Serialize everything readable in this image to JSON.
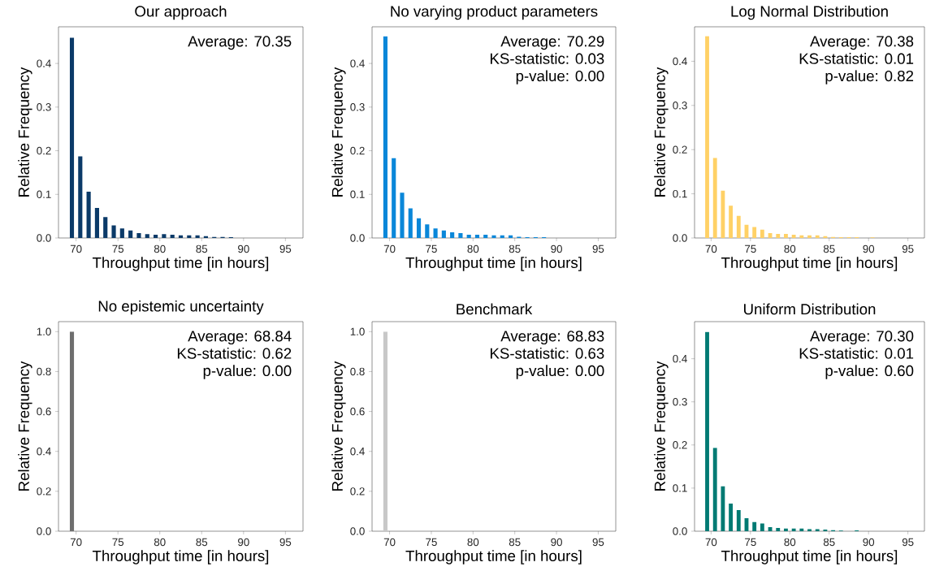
{
  "chart_data": [
    {
      "type": "bar",
      "title": "Our approach",
      "xlabel": "Throughput time [in hours]",
      "ylabel": "Relative Frequency",
      "color": "#0b3a68",
      "x": [
        69.5,
        70.5,
        71.5,
        72.5,
        73.5,
        74.5,
        75.5,
        76.5,
        77.5,
        78.5,
        79.5,
        80.5,
        81.5,
        82.5,
        83.5,
        84.5,
        85.5,
        86.5,
        87.5,
        88.5
      ],
      "values": [
        0.459,
        0.187,
        0.106,
        0.069,
        0.048,
        0.029,
        0.022,
        0.017,
        0.011,
        0.009,
        0.0075,
        0.009,
        0.0075,
        0.006,
        0.006,
        0.006,
        0.004,
        0.0025,
        0.0025,
        0.002
      ],
      "xlim": [
        67.9,
        97.1
      ],
      "xticks": [
        70,
        75,
        80,
        85,
        90,
        95
      ],
      "ylim": [
        0,
        0.484
      ],
      "yticks": [
        {
          "value": 0,
          "label": "0.0"
        },
        {
          "value": 0.1,
          "label": "0.1"
        },
        {
          "value": 0.2,
          "label": "0.2"
        },
        {
          "value": 0.3,
          "label": "0.3"
        },
        {
          "value": 0.4,
          "label": "0.4"
        }
      ],
      "annotations": [
        "Average: 70.35"
      ]
    },
    {
      "type": "bar",
      "title": "No varying product parameters",
      "xlabel": "Throughput time [in hours]",
      "ylabel": "Relative Frequency",
      "color": "#0a87d9",
      "x": [
        69.5,
        70.5,
        71.5,
        72.5,
        73.5,
        74.5,
        75.5,
        76.5,
        77.5,
        78.5,
        79.5,
        80.5,
        81.5,
        82.5,
        83.5,
        84.5,
        85.5,
        86.5,
        87.5,
        88.5
      ],
      "values": [
        0.462,
        0.183,
        0.104,
        0.068,
        0.045,
        0.031,
        0.022,
        0.017,
        0.013,
        0.011,
        0.0075,
        0.0075,
        0.0075,
        0.006,
        0.006,
        0.006,
        0.003,
        0.002,
        0.002,
        0.002
      ],
      "xlim": [
        67.9,
        97.1
      ],
      "xticks": [
        70,
        75,
        80,
        85,
        90,
        95
      ],
      "ylim": [
        0,
        0.484
      ],
      "yticks": [
        {
          "value": 0,
          "label": "0.0"
        },
        {
          "value": 0.1,
          "label": "0.1"
        },
        {
          "value": 0.2,
          "label": "0.2"
        },
        {
          "value": 0.3,
          "label": "0.3"
        },
        {
          "value": 0.4,
          "label": "0.4"
        }
      ],
      "annotations": [
        "Average: 70.29",
        "KS-statistic: 0.03",
        "p-value: 0.00"
      ]
    },
    {
      "type": "bar",
      "title": "Log Normal Distribution",
      "xlabel": "Throughput time [in hours]",
      "ylabel": "Relative Frequency",
      "color": "#ffd166",
      "x": [
        69.5,
        70.5,
        71.5,
        72.5,
        73.5,
        74.5,
        75.5,
        76.5,
        77.5,
        78.5,
        79.5,
        80.5,
        81.5,
        82.5,
        83.5,
        84.5,
        85.5,
        86.5,
        87.5,
        88.5,
        90.5
      ],
      "values": [
        0.457,
        0.181,
        0.107,
        0.073,
        0.05,
        0.03,
        0.025,
        0.019,
        0.011,
        0.009,
        0.009,
        0.0075,
        0.006,
        0.006,
        0.006,
        0.004,
        0.0025,
        0.002,
        0.002,
        0.002,
        0.0015
      ],
      "xlim": [
        67.9,
        97.1
      ],
      "xticks": [
        70,
        75,
        80,
        85,
        90,
        95
      ],
      "ylim": [
        0,
        0.478
      ],
      "yticks": [
        {
          "value": 0,
          "label": "0.0"
        },
        {
          "value": 0.1,
          "label": "0.1"
        },
        {
          "value": 0.2,
          "label": "0.2"
        },
        {
          "value": 0.3,
          "label": "0.3"
        },
        {
          "value": 0.4,
          "label": "0.4"
        }
      ],
      "annotations": [
        "Average: 70.38",
        "KS-statistic: 0.01",
        "p-value: 0.82"
      ]
    },
    {
      "type": "bar",
      "title": "No epistemic uncertainty",
      "xlabel": "Throughput time [in hours]",
      "ylabel": "Relative Frequency",
      "color": "#6e6e6e",
      "x": [
        69.5
      ],
      "values": [
        1.0
      ],
      "xlim": [
        67.9,
        97.1
      ],
      "xticks": [
        70,
        75,
        80,
        85,
        90,
        95
      ],
      "ylim": [
        0,
        1.05
      ],
      "yticks": [
        {
          "value": 0,
          "label": "0.0"
        },
        {
          "value": 0.2,
          "label": "0.2"
        },
        {
          "value": 0.4,
          "label": "0.4"
        },
        {
          "value": 0.6,
          "label": "0.6"
        },
        {
          "value": 0.8,
          "label": "0.8"
        },
        {
          "value": 1.0,
          "label": "1.0"
        }
      ],
      "annotations": [
        "Average: 68.84",
        "KS-statistic: 0.62",
        "p-value: 0.00"
      ]
    },
    {
      "type": "bar",
      "title": "Benchmark",
      "xlabel": "Throughput time [in hours]",
      "ylabel": "Relative Frequency",
      "color": "#c8c8c8",
      "x": [
        69.5
      ],
      "values": [
        1.0
      ],
      "xlim": [
        67.9,
        97.1
      ],
      "xticks": [
        70,
        75,
        80,
        85,
        90,
        95
      ],
      "ylim": [
        0,
        1.05
      ],
      "yticks": [
        {
          "value": 0,
          "label": "0.0"
        },
        {
          "value": 0.2,
          "label": "0.2"
        },
        {
          "value": 0.4,
          "label": "0.4"
        },
        {
          "value": 0.6,
          "label": "0.6"
        },
        {
          "value": 0.8,
          "label": "0.8"
        },
        {
          "value": 1.0,
          "label": "1.0"
        }
      ],
      "annotations": [
        "Average: 68.83",
        "KS-statistic: 0.63",
        "p-value: 0.00"
      ]
    },
    {
      "type": "bar",
      "title": "Uniform Distribution",
      "xlabel": "Throughput time [in hours]",
      "ylabel": "Relative Frequency",
      "color": "#007a73",
      "x": [
        69.5,
        70.5,
        71.5,
        72.5,
        73.5,
        74.5,
        75.5,
        76.5,
        77.5,
        78.5,
        79.5,
        80.5,
        81.5,
        82.5,
        83.5,
        84.5,
        85.5,
        86.5,
        88.5
      ],
      "values": [
        0.462,
        0.193,
        0.104,
        0.064,
        0.049,
        0.03,
        0.021,
        0.018,
        0.0095,
        0.0075,
        0.006,
        0.006,
        0.006,
        0.0045,
        0.0045,
        0.004,
        0.0025,
        0.0015,
        0.002
      ],
      "xlim": [
        67.9,
        97.1
      ],
      "xticks": [
        70,
        75,
        80,
        85,
        90,
        95
      ],
      "ylim": [
        0,
        0.486
      ],
      "yticks": [
        {
          "value": 0,
          "label": "0.0"
        },
        {
          "value": 0.1,
          "label": "0.1"
        },
        {
          "value": 0.2,
          "label": "0.2"
        },
        {
          "value": 0.3,
          "label": "0.3"
        },
        {
          "value": 0.4,
          "label": "0.4"
        }
      ],
      "annotations": [
        "Average: 70.30",
        "KS-statistic: 0.01",
        "p-value: 0.60"
      ]
    }
  ]
}
